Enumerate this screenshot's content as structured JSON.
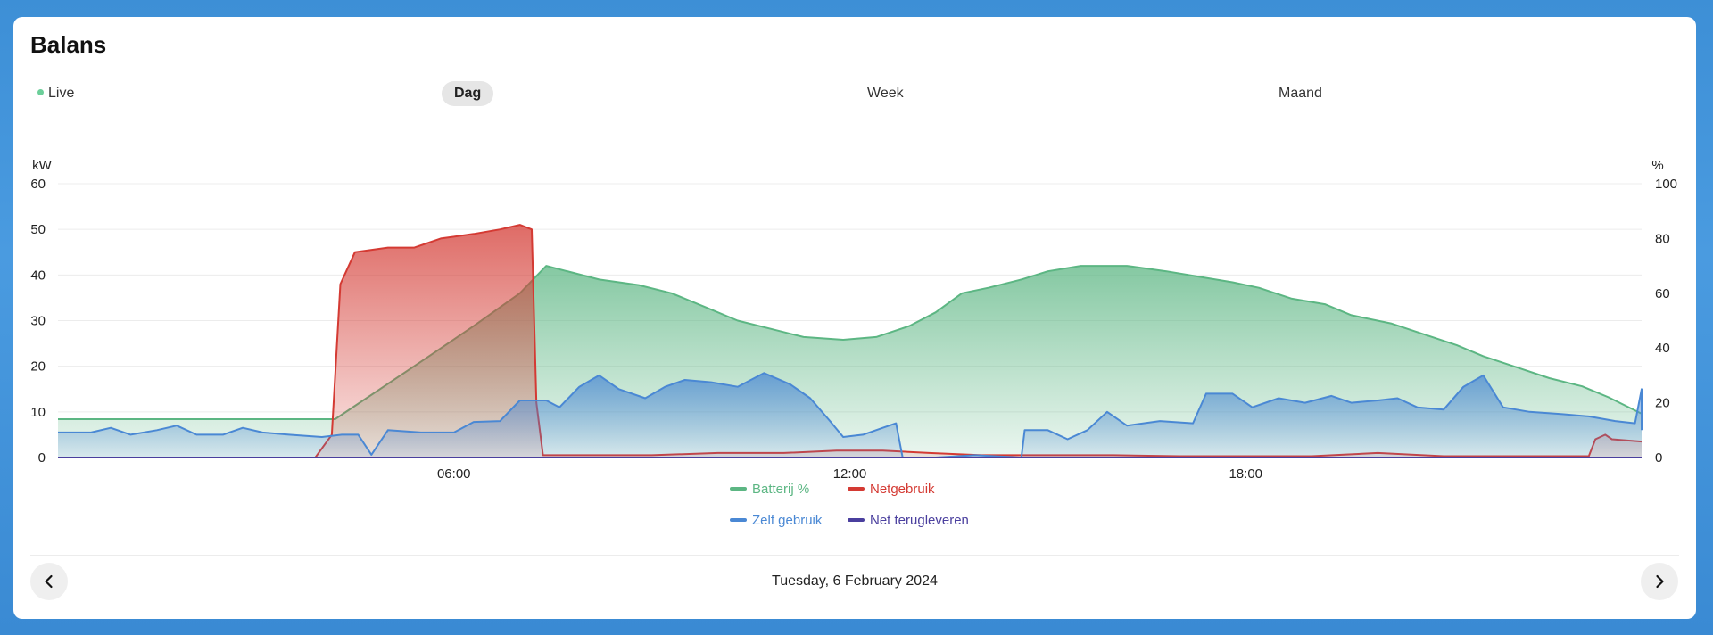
{
  "card": {
    "title": "Balans"
  },
  "tabs": [
    {
      "label": "Live",
      "active": false
    },
    {
      "label": "Dag",
      "active": true
    },
    {
      "label": "Week",
      "active": false
    },
    {
      "label": "Maand",
      "active": false
    }
  ],
  "footer": {
    "date": "Tuesday, 6 February 2024",
    "prev_icon": "chevron-left-icon",
    "next_icon": "chevron-right-icon"
  },
  "chart_data": {
    "type": "area",
    "y_left_unit": "kW",
    "y_right_unit": "%",
    "y_left_ticks": [
      0,
      10,
      20,
      30,
      40,
      50,
      60
    ],
    "y_right_ticks": [
      0,
      20,
      40,
      60,
      80,
      100
    ],
    "ylim_left": [
      0,
      60
    ],
    "ylim_right": [
      0,
      100
    ],
    "xlim_hours": [
      0,
      24
    ],
    "x_ticks": [
      {
        "hour": 6,
        "label": "06:00"
      },
      {
        "hour": 12,
        "label": "12:00"
      },
      {
        "hour": 18,
        "label": "18:00"
      }
    ],
    "grid": true,
    "legend_placement": "bottom-center",
    "series": [
      {
        "name": "Batterij %",
        "color": "#5cb683",
        "axis": "right",
        "points": [
          [
            0,
            14
          ],
          [
            4.2,
            14
          ],
          [
            5.5,
            35
          ],
          [
            6.3,
            48
          ],
          [
            7,
            60
          ],
          [
            7.4,
            70
          ],
          [
            8.2,
            65
          ],
          [
            8.8,
            63
          ],
          [
            9.3,
            60
          ],
          [
            9.8,
            55
          ],
          [
            10.3,
            50
          ],
          [
            10.8,
            47
          ],
          [
            11.3,
            44
          ],
          [
            11.9,
            43
          ],
          [
            12.4,
            44
          ],
          [
            12.9,
            48
          ],
          [
            13.3,
            53
          ],
          [
            13.7,
            60
          ],
          [
            14.1,
            62
          ],
          [
            14.6,
            65
          ],
          [
            15.0,
            68
          ],
          [
            15.5,
            70
          ],
          [
            16.2,
            70
          ],
          [
            16.8,
            68
          ],
          [
            17.3,
            66
          ],
          [
            17.8,
            64
          ],
          [
            18.2,
            62
          ],
          [
            18.7,
            58
          ],
          [
            19.2,
            56
          ],
          [
            19.6,
            52
          ],
          [
            20.2,
            49
          ],
          [
            20.7,
            45
          ],
          [
            21.2,
            41
          ],
          [
            21.6,
            37
          ],
          [
            22.1,
            33
          ],
          [
            22.6,
            29
          ],
          [
            23.1,
            26
          ],
          [
            23.5,
            22
          ],
          [
            24,
            16
          ]
        ]
      },
      {
        "name": "Netgebruik",
        "color": "#d43a33",
        "axis": "left",
        "points": [
          [
            0,
            0
          ],
          [
            3.9,
            0
          ],
          [
            4.15,
            5
          ],
          [
            4.28,
            38
          ],
          [
            4.5,
            45
          ],
          [
            5,
            46
          ],
          [
            5.4,
            46
          ],
          [
            5.8,
            48
          ],
          [
            6.3,
            49
          ],
          [
            6.7,
            50
          ],
          [
            7.0,
            51
          ],
          [
            7.18,
            50
          ],
          [
            7.25,
            12
          ],
          [
            7.35,
            0.5
          ],
          [
            9,
            0.5
          ],
          [
            10,
            1
          ],
          [
            11,
            1
          ],
          [
            11.8,
            1.5
          ],
          [
            12.5,
            1.5
          ],
          [
            13.2,
            1
          ],
          [
            14,
            0.5
          ],
          [
            15,
            0.5
          ],
          [
            16,
            0.5
          ],
          [
            17,
            0.3
          ],
          [
            18,
            0.3
          ],
          [
            19,
            0.3
          ],
          [
            20,
            1
          ],
          [
            21,
            0.3
          ],
          [
            22,
            0.3
          ],
          [
            23.2,
            0.3
          ],
          [
            23.3,
            4
          ],
          [
            23.45,
            5
          ],
          [
            23.55,
            4
          ],
          [
            24,
            3.5
          ]
        ]
      },
      {
        "name": "Zelf gebruik",
        "color": "#4a88d4",
        "axis": "left",
        "points": [
          [
            0,
            5.5
          ],
          [
            0.5,
            5.5
          ],
          [
            0.8,
            6.5
          ],
          [
            1.1,
            5
          ],
          [
            1.5,
            6
          ],
          [
            1.8,
            7
          ],
          [
            2.1,
            5
          ],
          [
            2.5,
            5
          ],
          [
            2.8,
            6.5
          ],
          [
            3.1,
            5.5
          ],
          [
            3.5,
            5
          ],
          [
            4,
            4.5
          ],
          [
            4.3,
            5
          ],
          [
            4.55,
            5
          ],
          [
            4.75,
            0.6
          ],
          [
            5,
            6
          ],
          [
            5.5,
            5.5
          ],
          [
            6,
            5.5
          ],
          [
            6.3,
            7.8
          ],
          [
            6.7,
            8
          ],
          [
            7.0,
            12.5
          ],
          [
            7.4,
            12.5
          ],
          [
            7.6,
            11
          ],
          [
            7.9,
            15.5
          ],
          [
            8.2,
            18
          ],
          [
            8.5,
            15
          ],
          [
            8.9,
            13
          ],
          [
            9.2,
            15.5
          ],
          [
            9.5,
            17
          ],
          [
            9.9,
            16.5
          ],
          [
            10.3,
            15.5
          ],
          [
            10.7,
            18.5
          ],
          [
            11.1,
            16
          ],
          [
            11.4,
            13
          ],
          [
            11.7,
            8
          ],
          [
            11.9,
            4.5
          ],
          [
            12.2,
            5
          ],
          [
            12.5,
            6.5
          ],
          [
            12.7,
            7.5
          ],
          [
            12.8,
            0
          ],
          [
            13.3,
            0
          ],
          [
            13.9,
            0.5
          ],
          [
            14.6,
            0
          ],
          [
            14.65,
            6
          ],
          [
            15.0,
            6
          ],
          [
            15.3,
            4
          ],
          [
            15.6,
            6
          ],
          [
            15.9,
            10
          ],
          [
            16.2,
            7
          ],
          [
            16.7,
            8
          ],
          [
            17.2,
            7.5
          ],
          [
            17.4,
            14
          ],
          [
            17.8,
            14
          ],
          [
            18.1,
            11
          ],
          [
            18.5,
            13
          ],
          [
            18.9,
            12
          ],
          [
            19.3,
            13.5
          ],
          [
            19.6,
            12
          ],
          [
            20.0,
            12.5
          ],
          [
            20.3,
            13
          ],
          [
            20.6,
            11
          ],
          [
            21.0,
            10.5
          ],
          [
            21.3,
            15.5
          ],
          [
            21.6,
            18
          ],
          [
            21.9,
            11
          ],
          [
            22.3,
            10
          ],
          [
            22.8,
            9.5
          ],
          [
            23.2,
            9
          ],
          [
            23.6,
            8
          ],
          [
            23.9,
            7.5
          ],
          [
            24.05,
            15
          ],
          [
            24.3,
            15
          ],
          [
            24.5,
            7
          ],
          [
            24.9,
            6
          ],
          [
            25.2,
            6
          ]
        ]
      },
      {
        "name": "Net terugleveren",
        "color": "#4a3f9e",
        "axis": "left",
        "points": [
          [
            0,
            0
          ],
          [
            24,
            0
          ]
        ]
      }
    ]
  }
}
